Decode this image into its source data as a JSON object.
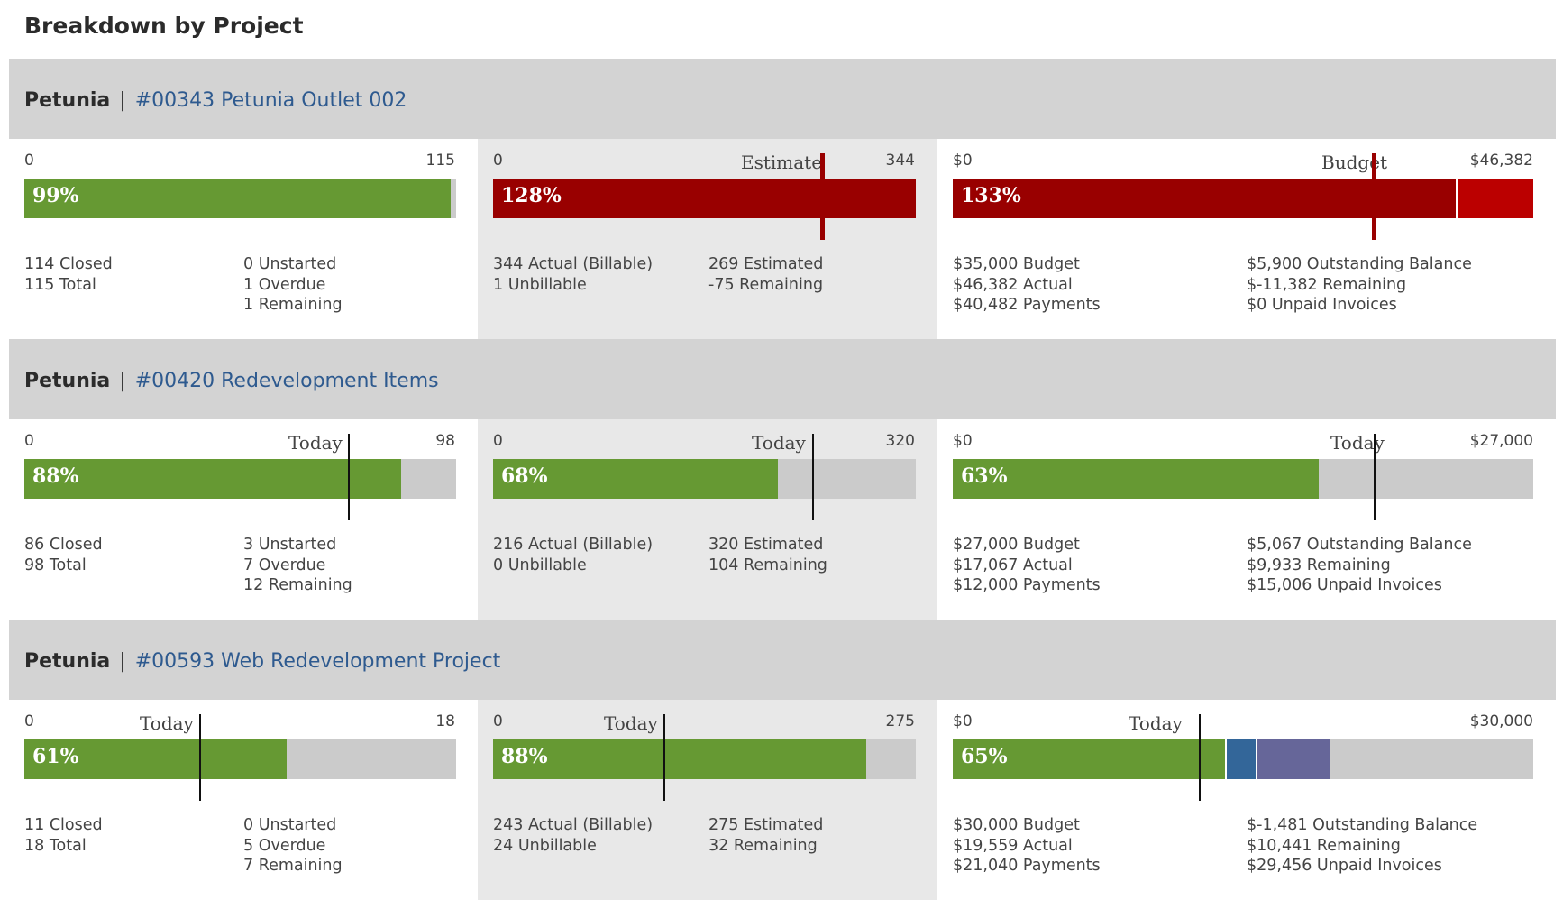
{
  "page_title": "Breakdown by Project",
  "projects": [
    {
      "client": "Petunia",
      "separator": "|",
      "name": "#00343 Petunia Outlet 002",
      "tasks": {
        "min": "0",
        "max": "115",
        "pct": "99%",
        "fill": 0.99,
        "col1": [
          "114 Closed",
          "115 Total"
        ],
        "col2": [
          "0 Unstarted",
          "1 Overdue",
          "1 Remaining"
        ]
      },
      "hours": {
        "min": "0",
        "max": "344",
        "marker_label": "Estimate",
        "pct": "128%",
        "col1": [
          "344 Actual (Billable)",
          "1 Unbillable"
        ],
        "col2": [
          "269 Estimated",
          "-75 Remaining"
        ]
      },
      "money": {
        "min": "$0",
        "max": "$46,382",
        "marker_label": "Budget",
        "pct": "133%",
        "col1": [
          "$35,000 Budget",
          "$46,382 Actual",
          "$40,482 Payments"
        ],
        "col2": [
          "$5,900 Outstanding Balance",
          "$-11,382 Remaining",
          "$0 Unpaid Invoices"
        ]
      }
    },
    {
      "client": "Petunia",
      "separator": "|",
      "name": "#00420 Redevelopment Items",
      "tasks": {
        "min": "0",
        "max": "98",
        "marker_label": "Today",
        "pct": "88%",
        "fill": 0.88,
        "col1": [
          "86 Closed",
          "98 Total"
        ],
        "col2": [
          "3 Unstarted",
          "7 Overdue",
          "12 Remaining"
        ]
      },
      "hours": {
        "min": "0",
        "max": "320",
        "marker_label": "Today",
        "pct": "68%",
        "fill": 0.68,
        "col1": [
          "216 Actual (Billable)",
          "0 Unbillable"
        ],
        "col2": [
          "320 Estimated",
          "104 Remaining"
        ]
      },
      "money": {
        "min": "$0",
        "max": "$27,000",
        "marker_label": "Today",
        "pct": "63%",
        "fill": 0.63,
        "col1": [
          "$27,000 Budget",
          "$17,067 Actual",
          "$12,000 Payments"
        ],
        "col2": [
          "$5,067 Outstanding Balance",
          "$9,933 Remaining",
          "$15,006 Unpaid Invoices"
        ]
      }
    },
    {
      "client": "Petunia",
      "separator": "|",
      "name": "#00593 Web Redevelopment Project",
      "tasks": {
        "min": "0",
        "max": "18",
        "marker_label": "Today",
        "pct": "61%",
        "fill": 0.61,
        "col1": [
          "11 Closed",
          "18 Total"
        ],
        "col2": [
          "0 Unstarted",
          "5 Overdue",
          "7 Remaining"
        ]
      },
      "hours": {
        "min": "0",
        "max": "275",
        "marker_label": "Today",
        "pct": "88%",
        "fill": 0.88,
        "col1": [
          "243 Actual (Billable)",
          "24 Unbillable"
        ],
        "col2": [
          "275 Estimated",
          "32 Remaining"
        ]
      },
      "money": {
        "min": "$0",
        "max": "$30,000",
        "marker_label": "Today",
        "pct": "65%",
        "fill": 0.65,
        "col1": [
          "$30,000 Budget",
          "$19,559 Actual",
          "$21,040 Payments"
        ],
        "col2": [
          "$-1,481 Outstanding Balance",
          "$10,441 Remaining",
          "$29,456 Unpaid Invoices"
        ]
      }
    }
  ],
  "colors": {
    "green": "#669933",
    "red": "#990000",
    "bright_red": "#bb0000",
    "blue": "#336699",
    "purple": "#666699",
    "track": "#cbcbcb",
    "header_bg": "#d3d3d3",
    "panel_shade": "#e8e8e8",
    "link": "#2e5a8f"
  }
}
